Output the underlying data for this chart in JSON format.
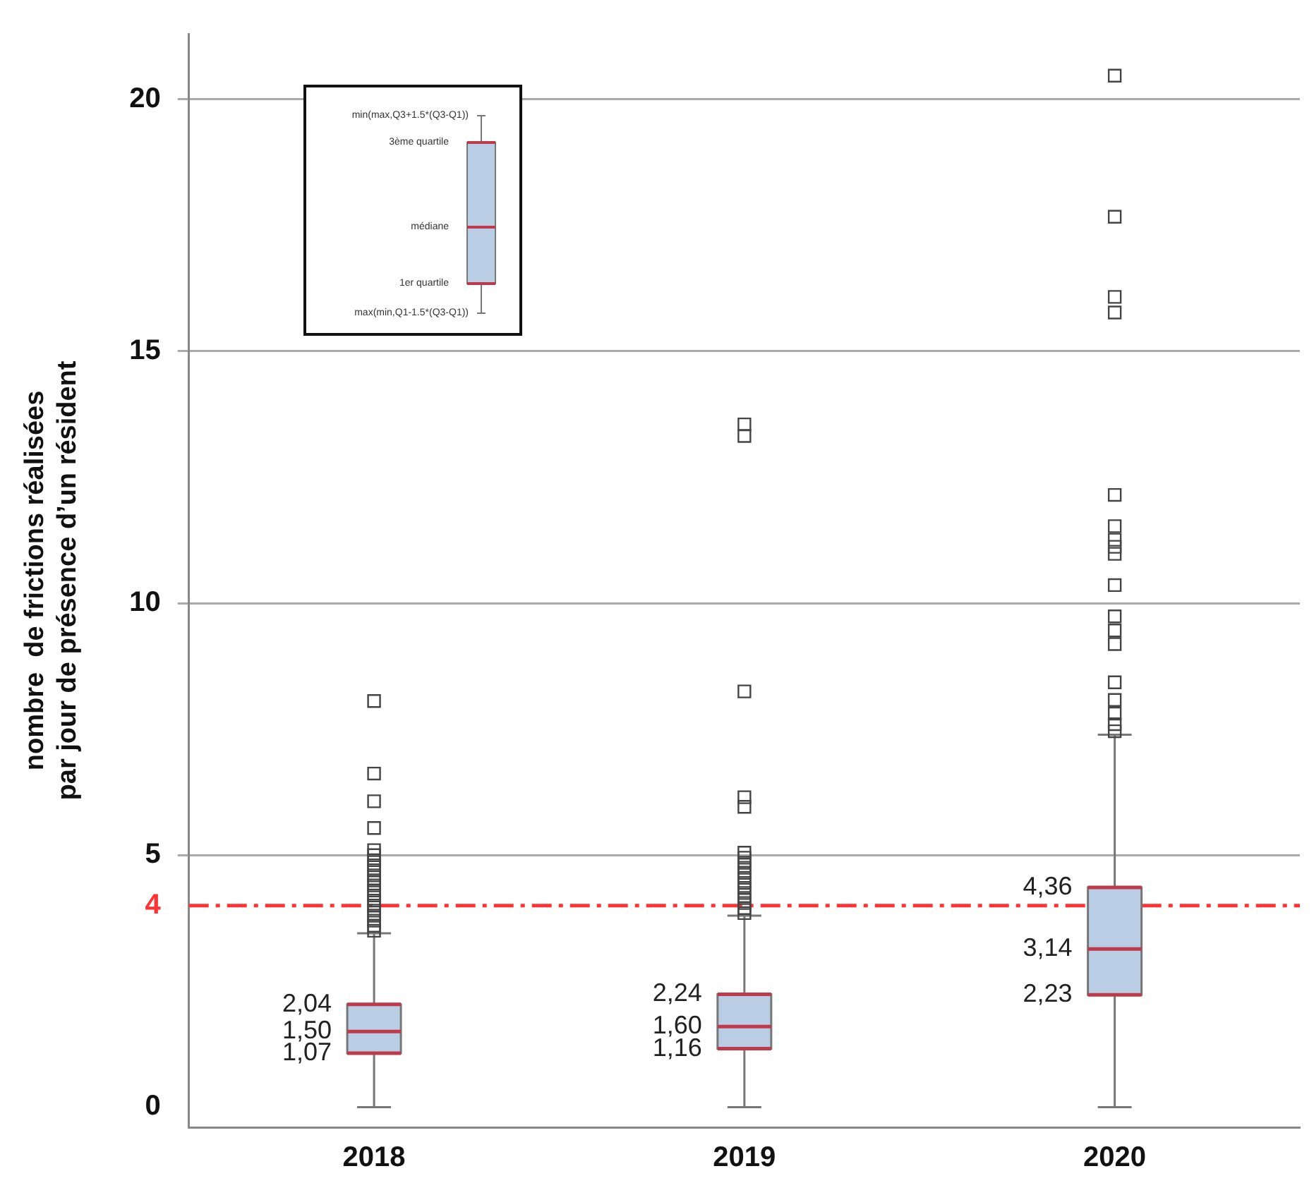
{
  "chart_data": {
    "type": "box",
    "ylabel": "nombre  de frictions réalisées\npar jour de présence d’un résident",
    "categories": [
      "2018",
      "2019",
      "2020"
    ],
    "color": "#b9cde5",
    "marker": "square",
    "grid": "y",
    "legend": false,
    "ylim": [
      -0.4,
      21.3
    ],
    "yticks": [
      0,
      5,
      10,
      15,
      20
    ],
    "boxes": [
      {
        "low": 0,
        "q1": 1.07,
        "median": 1.5,
        "q3": 2.04,
        "high": 3.45,
        "outliers": [
          8.06,
          6.62,
          6.07,
          5.54,
          5.1,
          5.0,
          4.9,
          4.8,
          4.7,
          4.6,
          4.5,
          4.4,
          4.3,
          4.2,
          4.1,
          4.0,
          3.9,
          3.8,
          3.7,
          3.6,
          3.5
        ]
      },
      {
        "low": 0,
        "q1": 1.16,
        "median": 1.6,
        "q3": 2.24,
        "high": 3.8,
        "outliers": [
          13.55,
          13.32,
          8.25,
          6.15,
          5.96,
          5.05,
          4.95,
          4.85,
          4.75,
          4.65,
          4.55,
          4.45,
          4.35,
          4.25,
          4.15,
          4.05,
          3.95,
          3.85
        ]
      },
      {
        "low": 0,
        "q1": 2.23,
        "median": 3.14,
        "q3": 4.36,
        "high": 7.39,
        "outliers": [
          20.47,
          17.67,
          16.08,
          15.77,
          12.15,
          11.53,
          11.26,
          11.12,
          10.98,
          10.36,
          9.74,
          9.46,
          9.19,
          8.43,
          8.08,
          7.81,
          7.6,
          7.46
        ]
      }
    ],
    "ref_lines": [
      {
        "axis": "y",
        "value": 4,
        "label": "4",
        "color": "#ff3333",
        "line_style": "dashdot"
      }
    ],
    "annotations": [
      {
        "text": "2,04",
        "x": "2018",
        "y": 2.04
      },
      {
        "text": "1,50",
        "x": "2018",
        "y": 1.5
      },
      {
        "text": "1,07",
        "x": "2018",
        "y": 1.07
      },
      {
        "text": "2,24",
        "x": "2019",
        "y": 2.24
      },
      {
        "text": "1,60",
        "x": "2019",
        "y": 1.6
      },
      {
        "text": "1,16",
        "x": "2019",
        "y": 1.16
      },
      {
        "text": "4,36",
        "x": "2020",
        "y": 4.36
      },
      {
        "text": "3,14",
        "x": "2020",
        "y": 3.14
      },
      {
        "text": "2,23",
        "x": "2020",
        "y": 2.23
      },
      "min(max,Q3+1.5*(Q3-Q1))",
      "3ème quartile",
      "médiane",
      "1er quartile",
      "max(min,Q1-1.5*(Q3-Q1))"
    ]
  }
}
